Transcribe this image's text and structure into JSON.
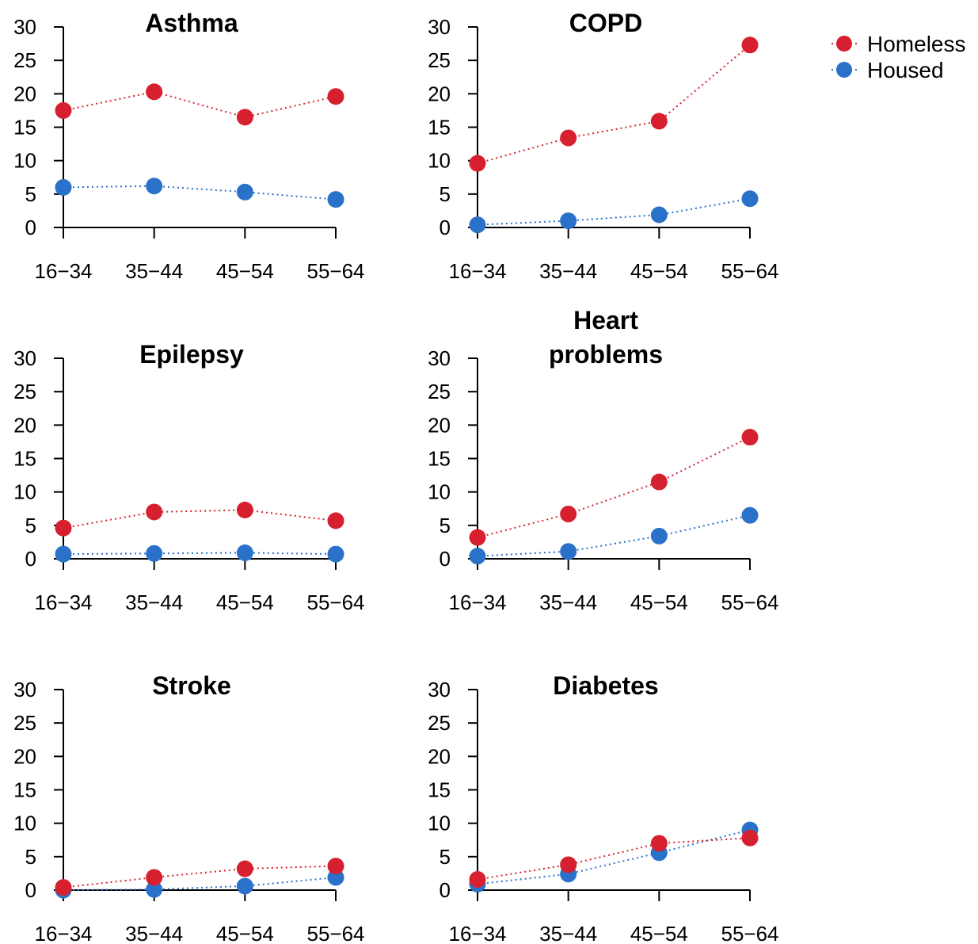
{
  "chart_data": [
    {
      "type": "line",
      "title_lines": [
        "Asthma"
      ],
      "categories": [
        "16−34",
        "35−44",
        "45−54",
        "55−64"
      ],
      "ylim": [
        0,
        30
      ],
      "yticks": [
        0,
        5,
        10,
        15,
        20,
        25,
        30
      ],
      "series": [
        {
          "name": "Homeless",
          "color": "#d7202f",
          "values": [
            17.5,
            20.3,
            16.5,
            19.6
          ]
        },
        {
          "name": "Housed",
          "color": "#2a71c9",
          "values": [
            6.0,
            6.2,
            5.3,
            4.2
          ]
        }
      ]
    },
    {
      "type": "line",
      "title_lines": [
        "COPD"
      ],
      "categories": [
        "16−34",
        "35−44",
        "45−54",
        "55−64"
      ],
      "ylim": [
        0,
        30
      ],
      "yticks": [
        0,
        5,
        10,
        15,
        20,
        25,
        30
      ],
      "series": [
        {
          "name": "Homeless",
          "color": "#d7202f",
          "values": [
            9.6,
            13.4,
            15.9,
            27.3
          ]
        },
        {
          "name": "Housed",
          "color": "#2a71c9",
          "values": [
            0.4,
            1.0,
            1.9,
            4.3
          ]
        }
      ]
    },
    {
      "type": "line",
      "title_lines": [
        "Epilepsy"
      ],
      "categories": [
        "16−34",
        "35−44",
        "45−54",
        "55−64"
      ],
      "ylim": [
        0,
        30
      ],
      "yticks": [
        0,
        5,
        10,
        15,
        20,
        25,
        30
      ],
      "series": [
        {
          "name": "Homeless",
          "color": "#d7202f",
          "values": [
            4.6,
            7.0,
            7.3,
            5.7
          ]
        },
        {
          "name": "Housed",
          "color": "#2a71c9",
          "values": [
            0.7,
            0.8,
            0.9,
            0.7
          ]
        }
      ]
    },
    {
      "type": "line",
      "title_lines": [
        "Heart",
        "problems"
      ],
      "categories": [
        "16−34",
        "35−44",
        "45−54",
        "55−64"
      ],
      "ylim": [
        0,
        30
      ],
      "yticks": [
        0,
        5,
        10,
        15,
        20,
        25,
        30
      ],
      "series": [
        {
          "name": "Homeless",
          "color": "#d7202f",
          "values": [
            3.2,
            6.7,
            11.5,
            18.2
          ]
        },
        {
          "name": "Housed",
          "color": "#2a71c9",
          "values": [
            0.4,
            1.1,
            3.4,
            6.5
          ]
        }
      ]
    },
    {
      "type": "line",
      "title_lines": [
        "Stroke"
      ],
      "categories": [
        "16−34",
        "35−44",
        "45−54",
        "55−64"
      ],
      "ylim": [
        0,
        30
      ],
      "yticks": [
        0,
        5,
        10,
        15,
        20,
        25,
        30
      ],
      "series": [
        {
          "name": "Homeless",
          "color": "#d7202f",
          "values": [
            0.4,
            1.9,
            3.2,
            3.6
          ]
        },
        {
          "name": "Housed",
          "color": "#2a71c9",
          "values": [
            0.0,
            0.1,
            0.6,
            1.9
          ]
        }
      ]
    },
    {
      "type": "line",
      "title_lines": [
        "Diabetes"
      ],
      "categories": [
        "16−34",
        "35−44",
        "45−54",
        "55−64"
      ],
      "ylim": [
        0,
        30
      ],
      "yticks": [
        0,
        5,
        10,
        15,
        20,
        25,
        30
      ],
      "series": [
        {
          "name": "Homeless",
          "color": "#d7202f",
          "values": [
            1.6,
            3.8,
            7.0,
            7.8
          ]
        },
        {
          "name": "Housed",
          "color": "#2a71c9",
          "values": [
            0.9,
            2.4,
            5.6,
            9.0
          ]
        }
      ]
    }
  ],
  "legend": {
    "placement": "top-right",
    "entries": [
      {
        "label": "Homeless",
        "color": "#d7202f"
      },
      {
        "label": "Housed",
        "color": "#2a71c9"
      }
    ]
  }
}
